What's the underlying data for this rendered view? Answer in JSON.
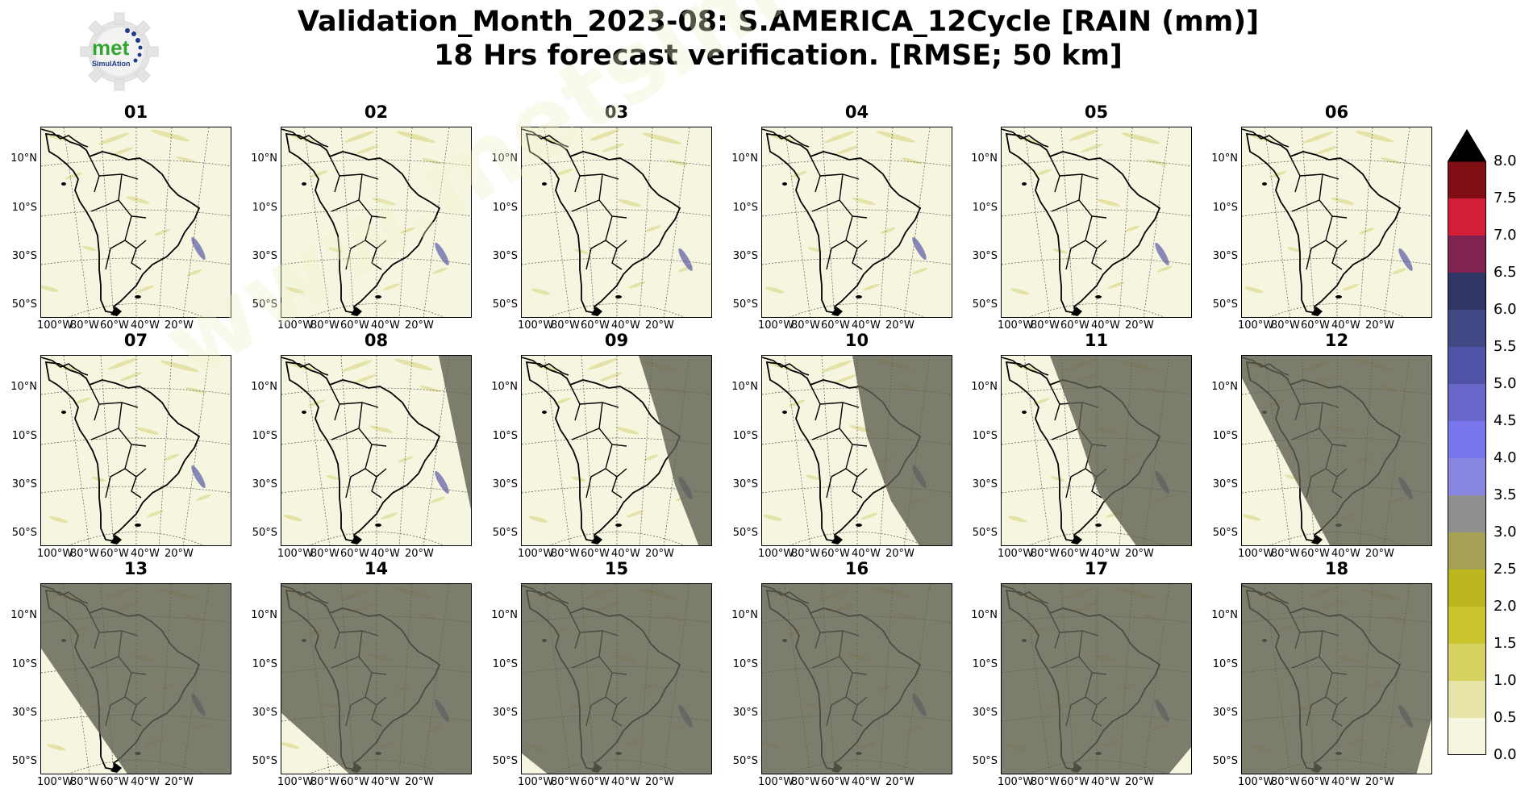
{
  "title": {
    "line1": "Validation_Month_2023-08: S.AMERICA_12Cycle [RAIN (mm)]",
    "line2": "18 Hrs forecast verification.  [RMSE; 50 km]"
  },
  "logo": {
    "text": "met",
    "subtext": "SimulAtion",
    "icon": "gear-icon"
  },
  "watermark": "www.metsimulation.com",
  "axis": {
    "lat_ticks": [
      "10°N",
      "10°S",
      "30°S",
      "50°S"
    ],
    "lon_ticks": [
      "100°W",
      "80°W",
      "60°W",
      "40°W",
      "20°W"
    ]
  },
  "panels": [
    {
      "label": "01",
      "shade": null
    },
    {
      "label": "02",
      "shade": null
    },
    {
      "label": "03",
      "shade": null
    },
    {
      "label": "04",
      "shade": null
    },
    {
      "label": "05",
      "shade": null
    },
    {
      "label": "06",
      "shade": null
    },
    {
      "label": "07",
      "shade": null
    },
    {
      "label": "08",
      "shade": "east-strip"
    },
    {
      "label": "09",
      "shade": "east-third"
    },
    {
      "label": "10",
      "shade": "east-half"
    },
    {
      "label": "11",
      "shade": "east-most"
    },
    {
      "label": "12",
      "shade": "diagonal-high"
    },
    {
      "label": "13",
      "shade": "diagonal-mid"
    },
    {
      "label": "14",
      "shade": "diagonal-low"
    },
    {
      "label": "15",
      "shade": "sw-corner"
    },
    {
      "label": "16",
      "shade": "full"
    },
    {
      "label": "17",
      "shade": "se-corner-small"
    },
    {
      "label": "18",
      "shade": "se-corner"
    }
  ],
  "colorbar": {
    "labels": [
      "8.0",
      "7.5",
      "7.0",
      "6.5",
      "6.0",
      "5.5",
      "5.0",
      "4.5",
      "4.0",
      "3.5",
      "3.0",
      "2.5",
      "2.0",
      "1.5",
      "1.0",
      "0.5",
      "0.0"
    ],
    "colors_top_to_bottom": [
      "#800e15",
      "#d21e36",
      "#7f2450",
      "#2f3565",
      "#414884",
      "#5153a8",
      "#6a67cb",
      "#7a76ed",
      "#8886e2",
      "#8f8f8f",
      "#a5a256",
      "#bcb71e",
      "#cbc62e",
      "#d6d361",
      "#e6e4a6",
      "#f6f6e0"
    ],
    "extend_color": "#000000"
  }
}
